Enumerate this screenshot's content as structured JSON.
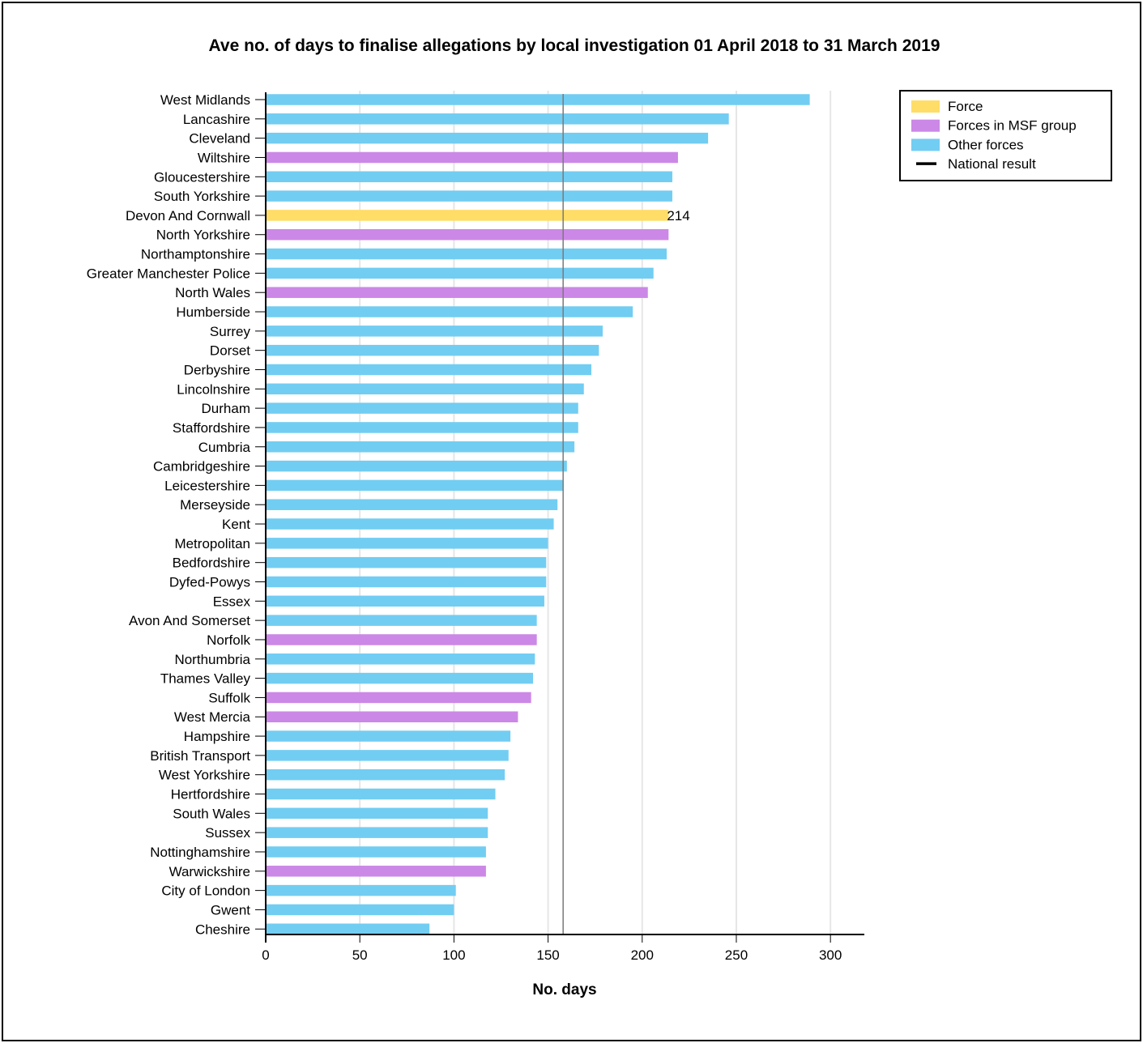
{
  "chart_data": {
    "type": "bar",
    "orientation": "horizontal",
    "title": "Ave no. of days to finalise allegations by local investigation 01 April 2018 to 31 March 2019",
    "xlabel": "No. days",
    "ylabel": "",
    "xlim": [
      0,
      318
    ],
    "xticks": [
      0,
      50,
      100,
      150,
      200,
      250,
      300
    ],
    "grid": true,
    "legend_position": "top-right",
    "national_result": 158,
    "colors": {
      "Force": "#FFDD66",
      "Forces in MSF group": "#CC88E6",
      "Other forces": "#72CDF2",
      "National result": "#000000",
      "grid": "#E6E6E6",
      "national_line": "#7A7A7A"
    },
    "legend": [
      {
        "label": "Force",
        "swatch": "bar",
        "group": "Force"
      },
      {
        "label": "Forces in MSF group",
        "swatch": "bar",
        "group": "Forces in MSF group"
      },
      {
        "label": "Other forces",
        "swatch": "bar",
        "group": "Other forces"
      },
      {
        "label": "National result",
        "swatch": "line",
        "group": "National result"
      }
    ],
    "bars": [
      {
        "category": "West Midlands",
        "value": 289,
        "group": "Other forces"
      },
      {
        "category": "Lancashire",
        "value": 246,
        "group": "Other forces"
      },
      {
        "category": "Cleveland",
        "value": 235,
        "group": "Other forces"
      },
      {
        "category": "Wiltshire",
        "value": 219,
        "group": "Forces in MSF group"
      },
      {
        "category": "Gloucestershire",
        "value": 216,
        "group": "Other forces"
      },
      {
        "category": "South Yorkshire",
        "value": 216,
        "group": "Other forces"
      },
      {
        "category": "Devon And Cornwall",
        "value": 214,
        "group": "Force",
        "label": "214"
      },
      {
        "category": "North Yorkshire",
        "value": 214,
        "group": "Forces in MSF group"
      },
      {
        "category": "Northamptonshire",
        "value": 213,
        "group": "Other forces"
      },
      {
        "category": "Greater Manchester Police",
        "value": 206,
        "group": "Other forces"
      },
      {
        "category": "North Wales",
        "value": 203,
        "group": "Forces in MSF group"
      },
      {
        "category": "Humberside",
        "value": 195,
        "group": "Other forces"
      },
      {
        "category": "Surrey",
        "value": 179,
        "group": "Other forces"
      },
      {
        "category": "Dorset",
        "value": 177,
        "group": "Other forces"
      },
      {
        "category": "Derbyshire",
        "value": 173,
        "group": "Other forces"
      },
      {
        "category": "Lincolnshire",
        "value": 169,
        "group": "Other forces"
      },
      {
        "category": "Durham",
        "value": 166,
        "group": "Other forces"
      },
      {
        "category": "Staffordshire",
        "value": 166,
        "group": "Other forces"
      },
      {
        "category": "Cumbria",
        "value": 164,
        "group": "Other forces"
      },
      {
        "category": "Cambridgeshire",
        "value": 160,
        "group": "Other forces"
      },
      {
        "category": "Leicestershire",
        "value": 158,
        "group": "Other forces"
      },
      {
        "category": "Merseyside",
        "value": 155,
        "group": "Other forces"
      },
      {
        "category": "Kent",
        "value": 153,
        "group": "Other forces"
      },
      {
        "category": "Metropolitan",
        "value": 150,
        "group": "Other forces"
      },
      {
        "category": "Bedfordshire",
        "value": 149,
        "group": "Other forces"
      },
      {
        "category": "Dyfed-Powys",
        "value": 149,
        "group": "Other forces"
      },
      {
        "category": "Essex",
        "value": 148,
        "group": "Other forces"
      },
      {
        "category": "Avon And Somerset",
        "value": 144,
        "group": "Other forces"
      },
      {
        "category": "Norfolk",
        "value": 144,
        "group": "Forces in MSF group"
      },
      {
        "category": "Northumbria",
        "value": 143,
        "group": "Other forces"
      },
      {
        "category": "Thames Valley",
        "value": 142,
        "group": "Other forces"
      },
      {
        "category": "Suffolk",
        "value": 141,
        "group": "Forces in MSF group"
      },
      {
        "category": "West Mercia",
        "value": 134,
        "group": "Forces in MSF group"
      },
      {
        "category": "Hampshire",
        "value": 130,
        "group": "Other forces"
      },
      {
        "category": "British Transport",
        "value": 129,
        "group": "Other forces"
      },
      {
        "category": "West Yorkshire",
        "value": 127,
        "group": "Other forces"
      },
      {
        "category": "Hertfordshire",
        "value": 122,
        "group": "Other forces"
      },
      {
        "category": "South Wales",
        "value": 118,
        "group": "Other forces"
      },
      {
        "category": "Sussex",
        "value": 118,
        "group": "Other forces"
      },
      {
        "category": "Nottinghamshire",
        "value": 117,
        "group": "Other forces"
      },
      {
        "category": "Warwickshire",
        "value": 117,
        "group": "Forces in MSF group"
      },
      {
        "category": "City of London",
        "value": 101,
        "group": "Other forces"
      },
      {
        "category": "Gwent",
        "value": 100,
        "group": "Other forces"
      },
      {
        "category": "Cheshire",
        "value": 87,
        "group": "Other forces"
      }
    ]
  }
}
